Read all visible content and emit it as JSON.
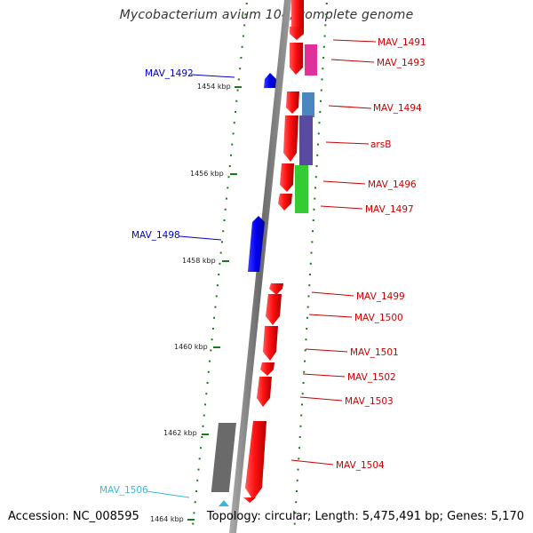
{
  "title": "Mycobacterium avium 104, complete genome",
  "footer": {
    "accession": "Accession: NC_008595",
    "topology": "Topology: circular; Length: 5,475,491 bp; Genes: 5,170"
  },
  "colors": {
    "forward_gene": "#e00000",
    "reverse_gene": "#0000dd",
    "label_forward": "#cc0000",
    "label_reverse": "#0000cc",
    "label_other": "#33bbdd",
    "tick": "#1a7a1a",
    "axis": "#7a7a7a"
  },
  "kbp_ticks": [
    {
      "label": "1454 kbp",
      "kbp": 1454
    },
    {
      "label": "1456 kbp",
      "kbp": 1456
    },
    {
      "label": "1458 kbp",
      "kbp": 1458
    },
    {
      "label": "1460 kbp",
      "kbp": 1460
    },
    {
      "label": "1462 kbp",
      "kbp": 1462
    },
    {
      "label": "1464 kbp",
      "kbp": 1464
    }
  ],
  "genes": [
    {
      "name": "MAV_1491",
      "strand": "forward"
    },
    {
      "name": "MAV_1492",
      "strand": "reverse"
    },
    {
      "name": "MAV_1493",
      "strand": "forward"
    },
    {
      "name": "MAV_1494",
      "strand": "forward"
    },
    {
      "name": "arsB",
      "strand": "forward"
    },
    {
      "name": "MAV_1496",
      "strand": "forward"
    },
    {
      "name": "MAV_1497",
      "strand": "forward"
    },
    {
      "name": "MAV_1498",
      "strand": "reverse"
    },
    {
      "name": "MAV_1499",
      "strand": "forward"
    },
    {
      "name": "MAV_1500",
      "strand": "forward"
    },
    {
      "name": "MAV_1501",
      "strand": "forward"
    },
    {
      "name": "MAV_1502",
      "strand": "forward"
    },
    {
      "name": "MAV_1503",
      "strand": "forward"
    },
    {
      "name": "MAV_1504",
      "strand": "forward"
    },
    {
      "name": "MAV_1506",
      "strand": "other"
    }
  ]
}
